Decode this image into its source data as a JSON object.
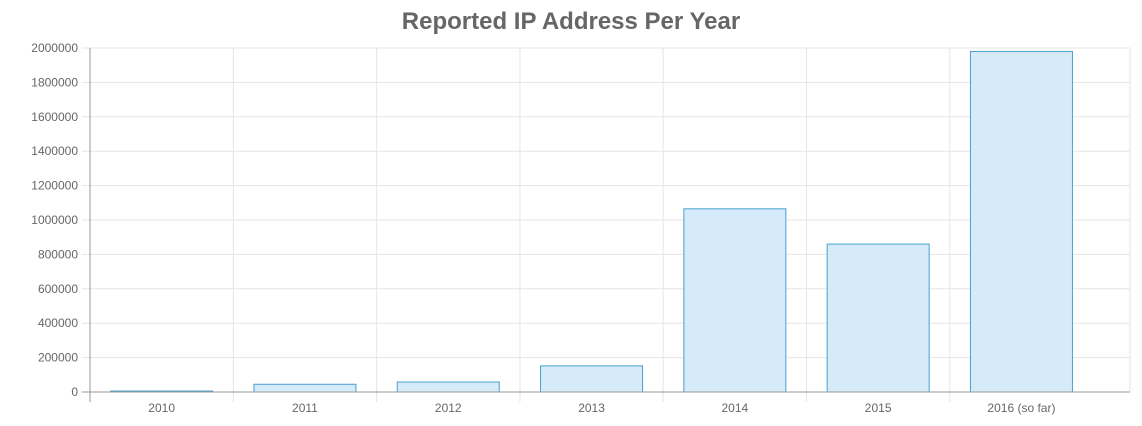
{
  "chart_data": {
    "type": "bar",
    "title": "Reported IP Address Per Year",
    "xlabel": "",
    "ylabel": "",
    "categories": [
      "2010",
      "2011",
      "2012",
      "2013",
      "2014",
      "2015",
      "2016 (so far)"
    ],
    "values": [
      2000,
      45000,
      58000,
      152000,
      1065000,
      860000,
      1980000
    ],
    "ylim": [
      0,
      2000000
    ],
    "yticks": [
      "0",
      "200000",
      "400000",
      "600000",
      "800000",
      "1000000",
      "1200000",
      "1400000",
      "1600000",
      "1800000",
      "2000000"
    ],
    "grid": true,
    "legend": "none",
    "colors": {
      "bar_fill": "#d6ebf9",
      "bar_stroke": "#4a9fcf",
      "grid": "#e5e5e5",
      "axis": "#999999",
      "text": "#666666"
    }
  }
}
